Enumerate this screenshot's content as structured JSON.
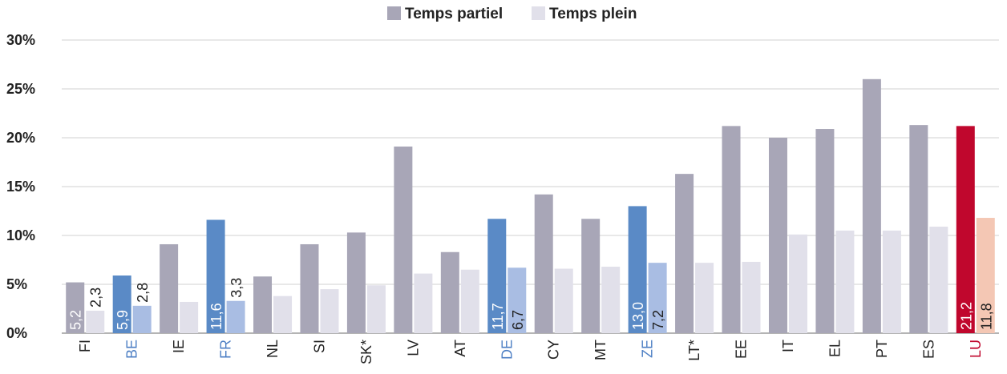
{
  "chart_data": {
    "type": "bar",
    "categories": [
      "FI",
      "BE",
      "IE",
      "FR",
      "NL",
      "SI",
      "SK*",
      "LV",
      "AT",
      "DE",
      "CY",
      "MT",
      "ZE",
      "LT*",
      "EE",
      "IT",
      "EL",
      "PT",
      "ES",
      "LU"
    ],
    "series": [
      {
        "name": "Temps partiel",
        "values": [
          5.2,
          5.9,
          9.1,
          11.6,
          5.8,
          9.1,
          10.3,
          19.1,
          8.3,
          11.7,
          14.2,
          11.7,
          13.0,
          16.3,
          21.2,
          20.0,
          20.9,
          26.0,
          21.3,
          21.2
        ]
      },
      {
        "name": "Temps plein",
        "values": [
          2.3,
          2.8,
          3.2,
          3.3,
          3.8,
          4.5,
          4.9,
          6.1,
          6.5,
          6.7,
          6.6,
          6.8,
          7.2,
          7.2,
          7.3,
          10.1,
          10.5,
          10.5,
          10.9,
          11.8
        ]
      }
    ],
    "data_labels": {
      "FI": [
        "5,2",
        "2,3"
      ],
      "BE": [
        "5,9",
        "2,8"
      ],
      "FR": [
        "11,6",
        "3,3"
      ],
      "DE": [
        "11,7",
        "6,7"
      ],
      "ZE": [
        "13,0",
        "7,2"
      ],
      "LU": [
        "21,2",
        "11,8"
      ]
    },
    "highlight": {
      "blue": [
        "BE",
        "FR",
        "DE",
        "ZE"
      ],
      "red": [
        "LU"
      ]
    },
    "yticks": [
      "0%",
      "5%",
      "10%",
      "15%",
      "20%",
      "25%",
      "30%"
    ],
    "ylim": [
      0,
      30
    ],
    "legend_position": "top-center",
    "grid": true,
    "colors": {
      "partiel": "#a8a6b7",
      "plein": "#e1e0ea",
      "blue_partiel": "#5a8ac6",
      "blue_plein": "#a9bde3",
      "red_partiel": "#c0072d",
      "red_plein": "#f4c7b4",
      "blue_label": "#4d7fc4",
      "red_label": "#c0072d",
      "grid": "#d0d0d0"
    }
  }
}
